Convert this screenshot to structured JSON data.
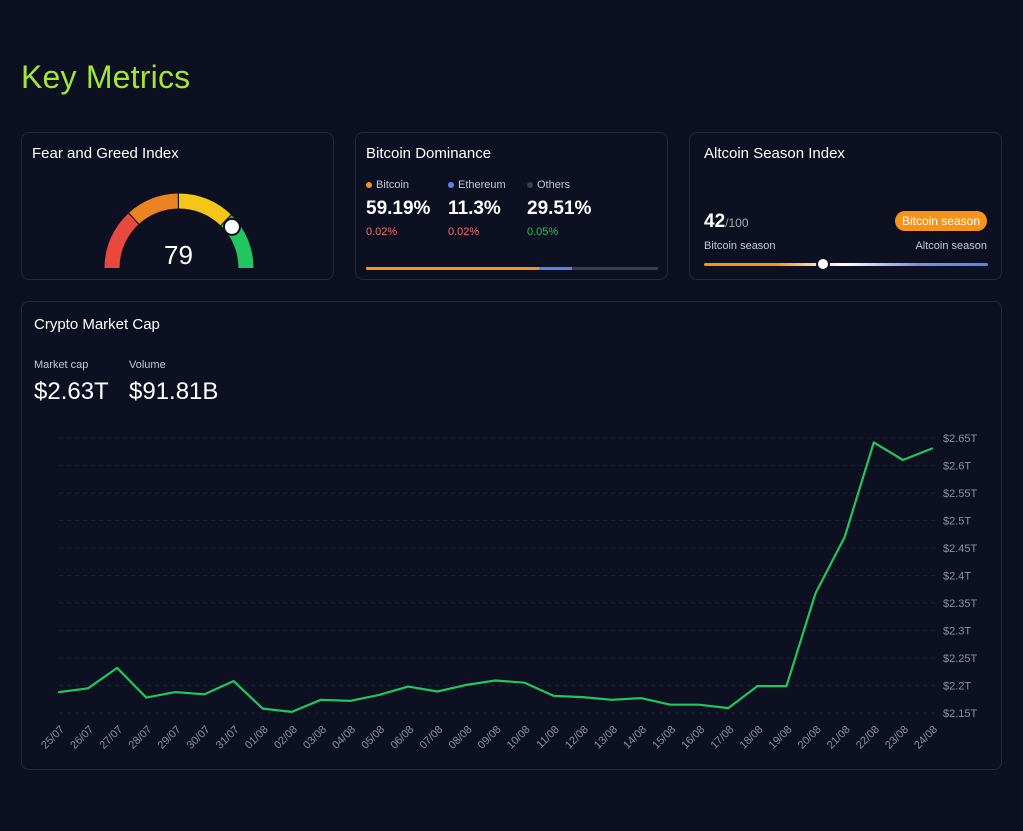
{
  "page": {
    "title": "Key Metrics"
  },
  "fear_greed": {
    "title": "Fear and Greed Index",
    "value": 79,
    "max": 100
  },
  "dominance": {
    "title": "Bitcoin Dominance",
    "items": [
      {
        "name": "Bitcoin",
        "value": "59.19%",
        "pct": 59.19,
        "change": "0.02%",
        "change_color": "#f87171",
        "color": "#f7931a"
      },
      {
        "name": "Ethereum",
        "value": "11.3%",
        "pct": 11.3,
        "change": "0.02%",
        "change_color": "#f87171",
        "color": "#627eea"
      },
      {
        "name": "Others",
        "value": "29.51%",
        "pct": 29.51,
        "change": "0.05%",
        "change_color": "#22c55e",
        "color": "#3a3f4b"
      }
    ]
  },
  "altcoin": {
    "title": "Altcoin Season Index",
    "score": "42",
    "max": "/100",
    "badge": "Bitcoin season",
    "left_label": "Bitcoin season",
    "right_label": "Altcoin season",
    "level": 0.42
  },
  "market": {
    "title": "Crypto Market Cap",
    "market_cap_label": "Market cap",
    "market_cap_value": "$2.63T",
    "volume_label": "Volume",
    "volume_value": "$91.81B"
  },
  "chart_data": {
    "type": "line",
    "x": [
      "25/07",
      "26/07",
      "27/07",
      "28/07",
      "29/07",
      "30/07",
      "31/07",
      "01/08",
      "02/08",
      "03/08",
      "04/08",
      "05/08",
      "06/08",
      "07/08",
      "08/08",
      "09/08",
      "10/08",
      "11/08",
      "12/08",
      "13/08",
      "14/08",
      "15/08",
      "16/08",
      "17/08",
      "18/08",
      "19/08",
      "20/08",
      "21/08",
      "22/08",
      "23/08",
      "24/08"
    ],
    "series": [
      {
        "color": "#22c55e",
        "values": [
          2.188,
          2.195,
          2.232,
          2.178,
          2.188,
          2.184,
          2.208,
          2.158,
          2.152,
          2.174,
          2.172,
          2.183,
          2.198,
          2.189,
          2.201,
          2.209,
          2.205,
          2.181,
          2.179,
          2.174,
          2.177,
          2.165,
          2.165,
          2.159,
          2.199,
          2.199,
          2.368,
          2.47,
          2.642,
          2.61,
          2.631
        ]
      }
    ],
    "y_ticks": [
      "$2.15T",
      "$2.2T",
      "$2.25T",
      "$2.3T",
      "$2.35T",
      "$2.4T",
      "$2.45T",
      "$2.5T",
      "$2.55T",
      "$2.6T",
      "$2.65T"
    ],
    "ylim": [
      2.15,
      2.65
    ],
    "grid": true
  }
}
